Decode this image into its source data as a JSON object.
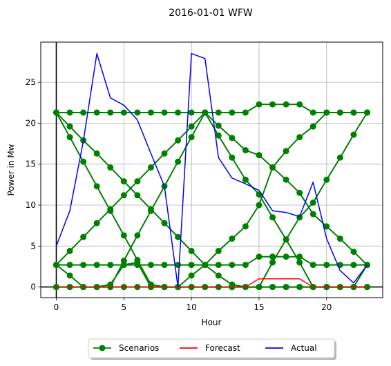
{
  "chart_data": {
    "type": "line",
    "title": "2016-01-01 WFW",
    "xlabel": "Hour",
    "ylabel": "Power in Mw",
    "xlim": [
      -1.15,
      24.15
    ],
    "ylim": [
      -1.3,
      29.9
    ],
    "xticks": [
      0,
      5,
      10,
      15,
      20
    ],
    "yticks": [
      0,
      5,
      10,
      15,
      20,
      25
    ],
    "grid": true,
    "legend_position": "bottom-center",
    "x": [
      0,
      1,
      2,
      3,
      4,
      5,
      6,
      7,
      8,
      9,
      10,
      11,
      12,
      13,
      14,
      15,
      16,
      17,
      18,
      19,
      20,
      21,
      22,
      23
    ],
    "series": [
      {
        "name": "Scenarios",
        "color": "#008000",
        "marker": "circle",
        "values": [
          21.3,
          21.3,
          21.3,
          21.3,
          21.3,
          21.3,
          21.3,
          21.3,
          21.3,
          21.3,
          21.3,
          21.3,
          21.3,
          21.3,
          21.3,
          22.3,
          22.3,
          22.3,
          22.3,
          21.3,
          21.3,
          21.3,
          21.3,
          21.3
        ]
      },
      {
        "name": "Scenarios",
        "color": "#008000",
        "marker": "circle",
        "values": [
          21.3,
          18.3,
          15.3,
          12.3,
          9.3,
          6.3,
          3.3,
          0.3,
          0.0,
          0.0,
          0.0,
          0.0,
          0.0,
          0.0,
          0.0,
          0.0,
          0.0,
          0.0,
          0.0,
          0.0,
          0.0,
          0.0,
          0.0,
          2.7
        ]
      },
      {
        "name": "Scenarios",
        "color": "#008000",
        "marker": "circle",
        "values": [
          21.3,
          19.6,
          17.9,
          16.3,
          14.6,
          12.9,
          11.2,
          9.5,
          7.8,
          6.1,
          4.4,
          2.7,
          4.4,
          5.9,
          7.4,
          10.0,
          14.6,
          16.6,
          18.3,
          19.6,
          21.3,
          21.3,
          21.3,
          21.3
        ]
      },
      {
        "name": "Scenarios",
        "color": "#008000",
        "marker": "circle",
        "values": [
          2.7,
          4.4,
          6.1,
          7.8,
          9.5,
          11.2,
          12.9,
          14.6,
          16.3,
          17.9,
          19.6,
          21.3,
          19.7,
          18.2,
          16.7,
          16.1,
          14.6,
          13.1,
          11.5,
          8.9,
          7.4,
          5.9,
          4.3,
          2.7
        ]
      },
      {
        "name": "Scenarios",
        "color": "#008000",
        "marker": "circle",
        "values": [
          0.0,
          0.0,
          0.0,
          0.0,
          0.0,
          3.2,
          6.3,
          9.3,
          12.3,
          15.3,
          18.3,
          21.3,
          18.5,
          15.8,
          13.1,
          11.3,
          8.5,
          5.8,
          3.0,
          0.0,
          0.0,
          0.0,
          0.0,
          0.0
        ]
      },
      {
        "name": "Scenarios",
        "color": "#008000",
        "marker": "circle",
        "values": [
          2.7,
          2.7,
          2.7,
          2.7,
          2.7,
          2.7,
          2.7,
          2.7,
          2.7,
          2.7,
          2.7,
          2.7,
          2.7,
          2.7,
          2.7,
          3.7,
          3.7,
          3.7,
          3.7,
          2.7,
          2.7,
          2.7,
          2.7,
          2.7
        ]
      },
      {
        "name": "Scenarios",
        "color": "#008000",
        "marker": "circle",
        "values": [
          2.7,
          1.4,
          0.0,
          0.0,
          0.3,
          2.7,
          3.0,
          0.0,
          0.0,
          0.0,
          1.4,
          2.7,
          1.4,
          0.3,
          0.0,
          0.0,
          3.0,
          5.8,
          8.5,
          10.3,
          13.1,
          15.8,
          18.6,
          21.3
        ]
      },
      {
        "name": "Scenarios",
        "color": "#008000",
        "marker": "circle",
        "values": [
          0.0,
          0.0,
          0.0,
          0.0,
          0.0,
          0.0,
          0.0,
          0.0,
          0.0,
          0.0,
          0.0,
          0.0,
          0.0,
          0.0,
          0.0,
          0.0,
          0.0,
          0.0,
          0.0,
          0.0,
          0.0,
          0.0,
          0.0,
          0.0
        ]
      },
      {
        "name": "Forecast",
        "color": "#ff0000",
        "marker": "none",
        "values": [
          0,
          0,
          0,
          0,
          0,
          0,
          0,
          0,
          0,
          0,
          0,
          0,
          0,
          0,
          0,
          1.0,
          1.0,
          1.0,
          1.0,
          0,
          0,
          0,
          0,
          0
        ]
      },
      {
        "name": "Actual",
        "color": "#0000ff",
        "marker": "none",
        "values": [
          5.0,
          9.3,
          17.8,
          28.5,
          23.1,
          22.2,
          20.4,
          16.3,
          12.3,
          0.0,
          28.5,
          27.9,
          15.8,
          13.3,
          12.6,
          11.8,
          9.3,
          9.1,
          8.6,
          12.8,
          5.9,
          2.0,
          0.5,
          2.7
        ]
      }
    ],
    "legend": [
      "Scenarios",
      "Forecast",
      "Actual"
    ]
  }
}
